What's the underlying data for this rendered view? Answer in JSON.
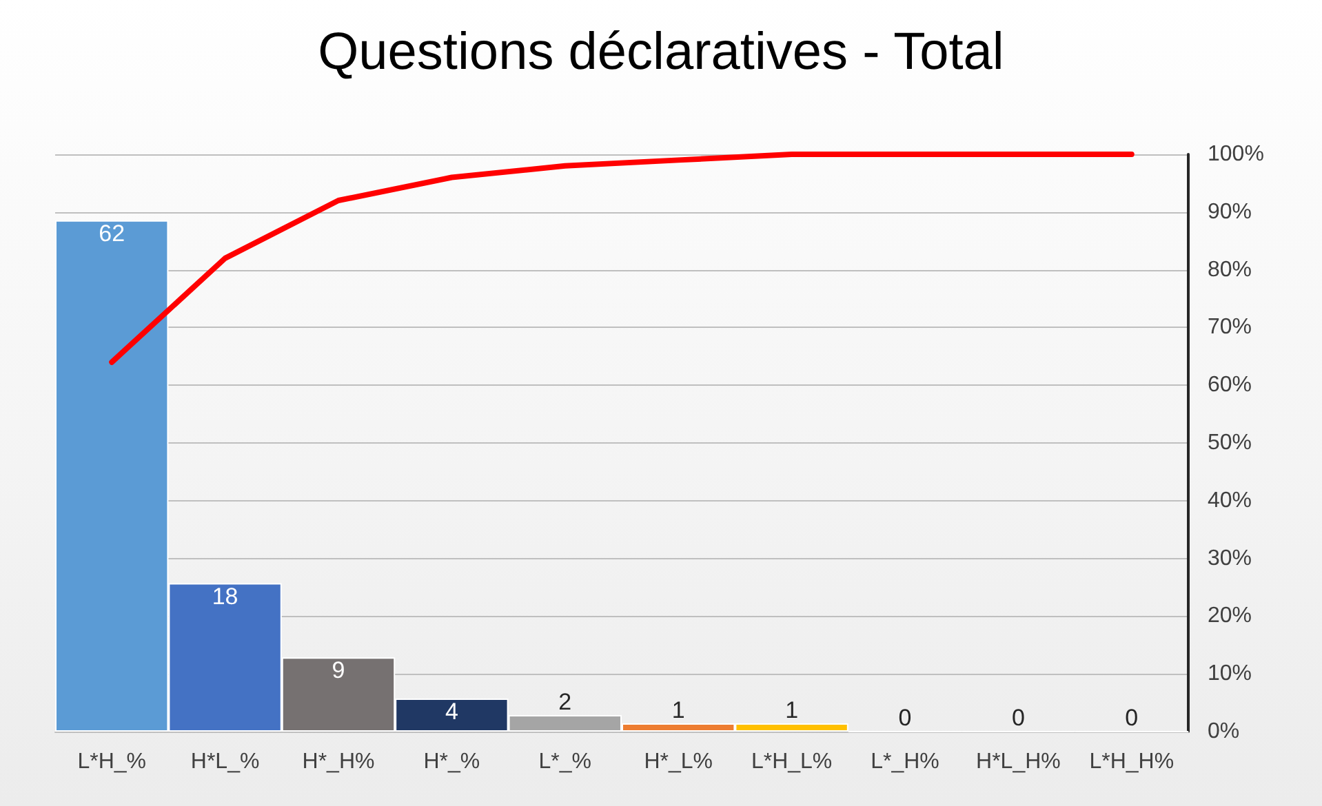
{
  "chart_data": {
    "type": "bar",
    "title": "Questions déclaratives - Total",
    "categories": [
      "L*H_%",
      "H*L_%",
      "H*_H%",
      "H*_%",
      "L*_%",
      "H*_L%",
      "L*H_L%",
      "L*_H%",
      "H*L_H%",
      "L*H_H%"
    ],
    "series": [
      {
        "values": [
          62,
          18,
          9,
          4,
          2,
          1,
          1,
          0,
          0,
          0
        ],
        "value_labels": [
          "62",
          "18",
          "9",
          "4",
          "2",
          "1",
          "1",
          "0",
          "0",
          "0"
        ],
        "colors": [
          "#5b9bd5",
          "#4472c4",
          "#767171",
          "#203864",
          "#a5a5a5",
          "#ed7d31",
          "#ffc000",
          "#5b9bd5",
          "#4472c4",
          "#767171"
        ]
      },
      {
        "type": "line",
        "axis": "y2",
        "color": "#ff0000",
        "values": [
          64,
          82,
          92,
          96,
          98,
          99,
          100,
          100,
          100,
          100
        ]
      }
    ],
    "ylim": [
      0,
      70
    ],
    "y2lim": [
      0,
      100
    ],
    "y2ticks": [
      {
        "value": 0,
        "label": "0%"
      },
      {
        "value": 10,
        "label": "10%"
      },
      {
        "value": 20,
        "label": "20%"
      },
      {
        "value": 30,
        "label": "30%"
      },
      {
        "value": 40,
        "label": "40%"
      },
      {
        "value": 50,
        "label": "50%"
      },
      {
        "value": 60,
        "label": "60%"
      },
      {
        "value": 70,
        "label": "70%"
      },
      {
        "value": 80,
        "label": "80%"
      },
      {
        "value": 90,
        "label": "90%"
      },
      {
        "value": 100,
        "label": "100%"
      }
    ],
    "grid": "y",
    "marker": "none"
  }
}
